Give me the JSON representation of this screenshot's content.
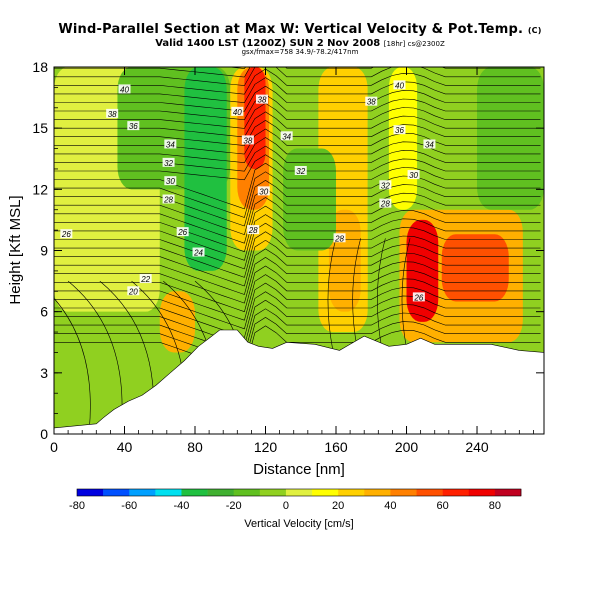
{
  "header": {
    "title": "Wind-Parallel Section at Max W: Vertical Velocity & Pot.Temp.",
    "title_mark": "(C)",
    "valid": "Valid 1400 LST (1200Z) SUN 2 Nov 2008",
    "valid_suffix": "[18hr] cs@2300Z",
    "meta": "gsx/fmax=758 34.9/-78.2/417nm"
  },
  "chart_data": {
    "type": "heatmap",
    "title": "Wind-Parallel Section at Max W: Vertical Velocity & Pot.Temp.",
    "xlabel": "Distance [nm]",
    "ylabel": "Height [Kft MSL]",
    "xlim": [
      0,
      278
    ],
    "ylim": [
      0,
      18
    ],
    "xticks": [
      "0",
      "40",
      "80",
      "120",
      "160",
      "200",
      "240"
    ],
    "xtick_values": [
      0,
      40,
      80,
      120,
      160,
      200,
      240
    ],
    "yticks": [
      "0",
      "3",
      "6",
      "9",
      "12",
      "15",
      "18"
    ],
    "ytick_values": [
      0,
      3,
      6,
      9,
      12,
      15,
      18
    ],
    "colorbar": {
      "label": "Vertical Velocity [cm/s]",
      "min": -80,
      "max": 90,
      "step": 10,
      "tick_labels": [
        "-80",
        "-60",
        "-40",
        "-20",
        "0",
        "20",
        "40",
        "60",
        "80"
      ],
      "tick_values": [
        -80,
        -60,
        -40,
        -20,
        0,
        20,
        40,
        60,
        80
      ],
      "colors": [
        "#0000e0",
        "#0050ff",
        "#00a0ff",
        "#00e0f0",
        "#20c040",
        "#40b030",
        "#60c020",
        "#90d020",
        "#e0f040",
        "#ffff00",
        "#ffd000",
        "#ffb000",
        "#ff8000",
        "#ff5000",
        "#ff2000",
        "#f00000",
        "#c00020"
      ]
    },
    "terrain_kft": [
      [
        0,
        0.3
      ],
      [
        24,
        0.5
      ],
      [
        28,
        0.8
      ],
      [
        34,
        1.2
      ],
      [
        42,
        1.6
      ],
      [
        50,
        1.9
      ],
      [
        58,
        2.4
      ],
      [
        66,
        3.0
      ],
      [
        74,
        3.6
      ],
      [
        82,
        4.3
      ],
      [
        88,
        4.7
      ],
      [
        94,
        5.1
      ],
      [
        104,
        5.1
      ],
      [
        110,
        4.5
      ],
      [
        116,
        4.3
      ],
      [
        124,
        4.2
      ],
      [
        132,
        4.5
      ],
      [
        148,
        4.4
      ],
      [
        162,
        4.1
      ],
      [
        168,
        4.4
      ],
      [
        176,
        4.8
      ],
      [
        190,
        4.3
      ],
      [
        200,
        4.4
      ],
      [
        208,
        4.7
      ],
      [
        216,
        4.4
      ],
      [
        248,
        4.4
      ],
      [
        264,
        4.1
      ],
      [
        278,
        4.0
      ]
    ],
    "w_cells": [
      {
        "x": [
          0,
          278
        ],
        "y": [
          0,
          18
        ],
        "w": -5
      },
      {
        "x": [
          0,
          60
        ],
        "y": [
          6,
          18
        ],
        "w": 5
      },
      {
        "x": [
          36,
          100
        ],
        "y": [
          12,
          18
        ],
        "w": -15
      },
      {
        "x": [
          74,
          98
        ],
        "y": [
          8,
          18
        ],
        "w": -35
      },
      {
        "x": [
          100,
          124
        ],
        "y": [
          9,
          18
        ],
        "w": 25
      },
      {
        "x": [
          104,
          122
        ],
        "y": [
          11,
          18
        ],
        "w": 45
      },
      {
        "x": [
          108,
          120
        ],
        "y": [
          13,
          18
        ],
        "w": 65
      },
      {
        "x": [
          150,
          178
        ],
        "y": [
          5,
          18
        ],
        "w": 20
      },
      {
        "x": [
          156,
          174
        ],
        "y": [
          6,
          11
        ],
        "w": 35
      },
      {
        "x": [
          178,
          194
        ],
        "y": [
          9,
          18
        ],
        "w": -10
      },
      {
        "x": [
          190,
          206
        ],
        "y": [
          11,
          18
        ],
        "w": 15
      },
      {
        "x": [
          196,
          266
        ],
        "y": [
          4.5,
          11
        ],
        "w": 30
      },
      {
        "x": [
          200,
          218
        ],
        "y": [
          5.5,
          10.5
        ],
        "w": 70
      },
      {
        "x": [
          220,
          258
        ],
        "y": [
          6.5,
          9.8
        ],
        "w": 58
      },
      {
        "x": [
          60,
          80
        ],
        "y": [
          4,
          7
        ],
        "w": 35
      },
      {
        "x": [
          130,
          160
        ],
        "y": [
          9,
          14
        ],
        "w": -15
      },
      {
        "x": [
          240,
          278
        ],
        "y": [
          11,
          18
        ],
        "w": -12
      }
    ],
    "contour_labels": [
      {
        "text": "40",
        "x": 40,
        "y": 16.9
      },
      {
        "text": "38",
        "x": 33,
        "y": 15.7
      },
      {
        "text": "36",
        "x": 45,
        "y": 15.1
      },
      {
        "text": "34",
        "x": 66,
        "y": 14.2
      },
      {
        "text": "32",
        "x": 65,
        "y": 13.3
      },
      {
        "text": "30",
        "x": 66,
        "y": 12.4
      },
      {
        "text": "28",
        "x": 65,
        "y": 11.5
      },
      {
        "text": "26",
        "x": 7,
        "y": 9.8
      },
      {
        "text": "26",
        "x": 73,
        "y": 9.9
      },
      {
        "text": "24",
        "x": 82,
        "y": 8.9
      },
      {
        "text": "22",
        "x": 52,
        "y": 7.6
      },
      {
        "text": "20",
        "x": 45,
        "y": 7.0
      },
      {
        "text": "40",
        "x": 104,
        "y": 15.8
      },
      {
        "text": "38",
        "x": 118,
        "y": 16.4
      },
      {
        "text": "38",
        "x": 110,
        "y": 14.4
      },
      {
        "text": "30",
        "x": 119,
        "y": 11.9
      },
      {
        "text": "28",
        "x": 113,
        "y": 10.0
      },
      {
        "text": "34",
        "x": 132,
        "y": 14.6
      },
      {
        "text": "32",
        "x": 140,
        "y": 12.9
      },
      {
        "text": "28",
        "x": 162,
        "y": 9.6
      },
      {
        "text": "40",
        "x": 196,
        "y": 17.1
      },
      {
        "text": "38",
        "x": 180,
        "y": 16.3
      },
      {
        "text": "36",
        "x": 196,
        "y": 14.9
      },
      {
        "text": "34",
        "x": 213,
        "y": 14.2
      },
      {
        "text": "32",
        "x": 188,
        "y": 12.2
      },
      {
        "text": "30",
        "x": 204,
        "y": 12.7
      },
      {
        "text": "28",
        "x": 188,
        "y": 11.3
      },
      {
        "text": "26",
        "x": 207,
        "y": 6.7
      }
    ]
  }
}
